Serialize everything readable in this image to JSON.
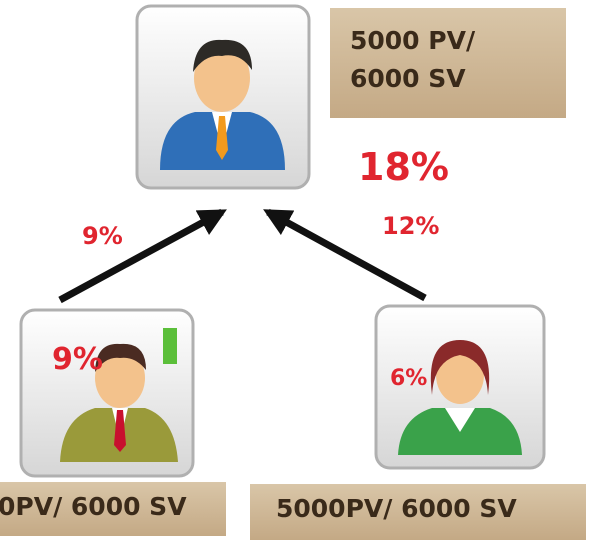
{
  "top_node": {
    "label": "5000 PV/ 6000 SV",
    "total_percent": "18%"
  },
  "left_node": {
    "badge": "9%",
    "label": "0PV/ 6000 SV",
    "arrow_label": "9%"
  },
  "right_node": {
    "badge": "6%",
    "label": "5000PV/ 6000 SV",
    "arrow_label": "12%"
  }
}
